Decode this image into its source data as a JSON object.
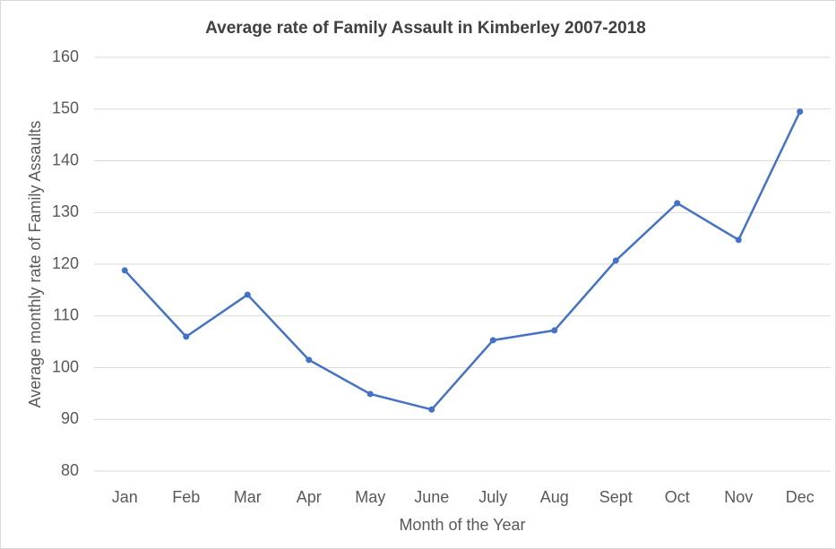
{
  "chart_data": {
    "type": "line",
    "title": "Average rate of Family Assault in Kimberley 2007-2018",
    "x_label": "Month of the Year",
    "y_label": "Average monthly rate of Family Assaults",
    "categories": [
      "Jan",
      "Feb",
      "Mar",
      "Apr",
      "May",
      "June",
      "July",
      "Aug",
      "Sept",
      "Oct",
      "Nov",
      "Dec"
    ],
    "values": [
      118.8,
      106.0,
      114.1,
      101.5,
      94.9,
      91.9,
      105.3,
      107.2,
      120.7,
      131.8,
      124.7,
      149.5
    ],
    "color": "#4472c4",
    "ylim": [
      80,
      160
    ],
    "yticks": [
      80,
      90,
      100,
      110,
      120,
      130,
      140,
      150,
      160
    ],
    "grid": true
  }
}
